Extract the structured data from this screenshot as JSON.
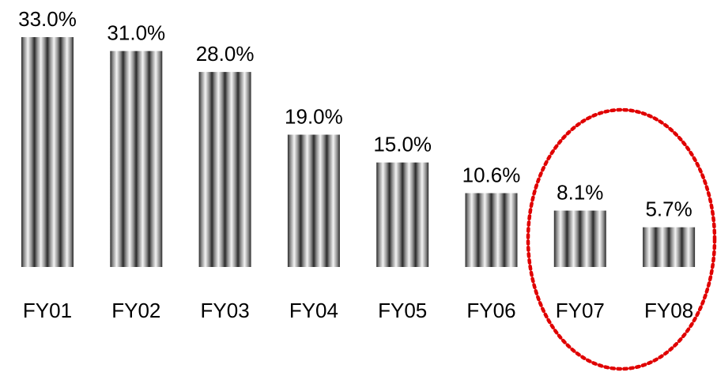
{
  "chart_data": {
    "type": "bar",
    "title": "",
    "xlabel": "",
    "ylabel": "",
    "categories": [
      "FY01",
      "FY02",
      "FY03",
      "FY04",
      "FY05",
      "FY06",
      "FY07",
      "FY08"
    ],
    "values": [
      33.0,
      31.0,
      28.0,
      19.0,
      15.0,
      10.6,
      8.1,
      5.7
    ],
    "value_labels": [
      "33.0%",
      "31.0%",
      "28.0%",
      "19.0%",
      "15.0%",
      "10.6%",
      "8.1%",
      "5.7%"
    ],
    "ylim": [
      0,
      33.0
    ],
    "grid": false,
    "legend": "none",
    "highlight": {
      "categories": [
        "FY07",
        "FY08"
      ],
      "shape": "dotted-ellipse",
      "color": "#e00000"
    },
    "bar_style": "vertical-stripe-gradient",
    "colors": {
      "bar_dark": "#2a2a2a",
      "bar_light": "#f4f4f4",
      "bar_mid": "#8a8a8a",
      "text": "#000000",
      "highlight": "#e00000"
    }
  }
}
